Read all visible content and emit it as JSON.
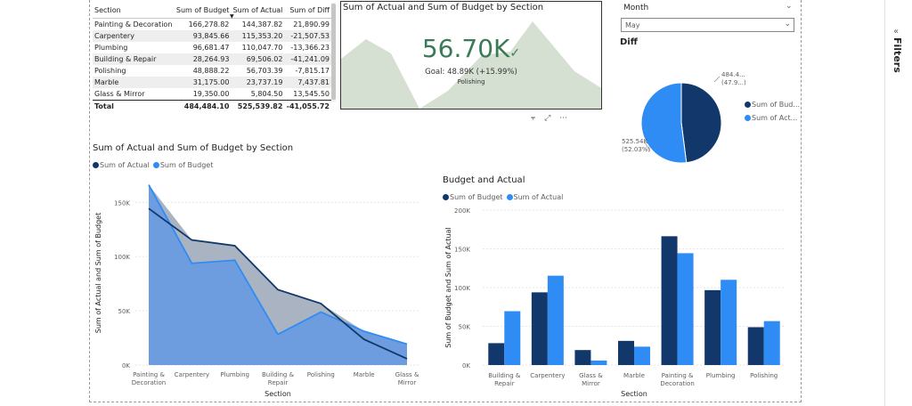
{
  "colors": {
    "dark": "#12386b",
    "light": "#2f8cf4",
    "kpi_green": "#3b7a57",
    "kpi_bg": "#d5e0d3"
  },
  "table": {
    "headers": [
      "Section",
      "Sum of Budget",
      "Sum of Actual",
      "Sum of Diff"
    ],
    "rows": [
      [
        "Painting & Decoration",
        "166,278.82",
        "144,387.82",
        "21,890.99"
      ],
      [
        "Carpentery",
        "93,845.66",
        "115,353.20",
        "-21,507.53"
      ],
      [
        "Plumbing",
        "96,681.47",
        "110,047.70",
        "-13,366.23"
      ],
      [
        "Building & Repair",
        "28,264.93",
        "69,506.02",
        "-41,241.09"
      ],
      [
        "Polishing",
        "48,888.22",
        "56,703.39",
        "-7,815.17"
      ],
      [
        "Marble",
        "31,175.00",
        "23,737.19",
        "7,437.81"
      ],
      [
        "Glass & Mirror",
        "19,350.00",
        "5,804.50",
        "13,545.50"
      ]
    ],
    "total": [
      "Total",
      "484,484.10",
      "525,539.82",
      "-41,055.72"
    ]
  },
  "kpi": {
    "title": "Sum of Actual and Sum of Budget by Section",
    "value": "56.70K",
    "check": "✓",
    "goal": "Goal: 48.89K (+15.99%)",
    "sub": "Polishing"
  },
  "toolbar_icons": [
    "filter-icon",
    "focus-mode-icon",
    "more-options-icon"
  ],
  "slicer": {
    "title": "Month",
    "value": "May"
  },
  "pie": {
    "title": "Diff",
    "label_top": "484.4...",
    "label_top_pct": "(47.9...)",
    "label_bottom": "525.54K",
    "label_bottom_pct": "(52.03%)",
    "legend": [
      "Sum of Bud...",
      "Sum of Act..."
    ],
    "values": [
      484484.1,
      525539.82
    ]
  },
  "filters_pane": {
    "label": "Filters"
  },
  "area_chart": {
    "title": "Sum of Actual and Sum of Budget by Section",
    "legend": [
      "Sum of Actual",
      "Sum of Budget"
    ]
  },
  "bar_chart": {
    "title": "Budget and Actual",
    "legend": [
      "Sum of Budget",
      "Sum of Actual"
    ]
  },
  "chart_data": [
    {
      "type": "area",
      "title": "Sum of Actual and Sum of Budget by Section",
      "xlabel": "Section",
      "ylabel": "Sum of Actual and Sum of Budget",
      "categories": [
        "Painting & Decoration",
        "Carpentery",
        "Plumbing",
        "Building & Repair",
        "Polishing",
        "Marble",
        "Glass & Mirror"
      ],
      "category_lines": [
        [
          "Painting &",
          "Decoration"
        ],
        [
          "Carpentery"
        ],
        [
          "Plumbing"
        ],
        [
          "Building &",
          "Repair"
        ],
        [
          "Polishing"
        ],
        [
          "Marble"
        ],
        [
          "Glass &",
          "Mirror"
        ]
      ],
      "series": [
        {
          "name": "Sum of Actual",
          "values": [
            144387.82,
            115353.2,
            110047.7,
            69506.02,
            56703.39,
            23737.19,
            5804.5
          ]
        },
        {
          "name": "Sum of Budget",
          "values": [
            166278.82,
            93845.66,
            96681.47,
            28264.93,
            48888.22,
            31175.0,
            19350.0
          ]
        }
      ],
      "yticks": [
        "0K",
        "50K",
        "100K",
        "150K"
      ],
      "ylim": [
        0,
        170000
      ],
      "grid": true,
      "legend_position": "top-left"
    },
    {
      "type": "bar",
      "title": "Budget and Actual",
      "xlabel": "Section",
      "ylabel": "Sum of Budget and Sum of Actual",
      "categories": [
        "Building & Repair",
        "Carpentery",
        "Glass & Mirror",
        "Marble",
        "Painting & Decoration",
        "Plumbing",
        "Polishing"
      ],
      "category_lines": [
        [
          "Building &",
          "Repair"
        ],
        [
          "Carpentery"
        ],
        [
          "Glass &",
          "Mirror"
        ],
        [
          "Marble"
        ],
        [
          "Painting &",
          "Decoration"
        ],
        [
          "Plumbing"
        ],
        [
          "Polishing"
        ]
      ],
      "series": [
        {
          "name": "Sum of Budget",
          "values": [
            28264.93,
            93845.66,
            19350.0,
            31175.0,
            166278.82,
            96681.47,
            48888.22
          ]
        },
        {
          "name": "Sum of Actual",
          "values": [
            69506.02,
            115353.2,
            5804.5,
            23737.19,
            144387.82,
            110047.7,
            56703.39
          ]
        }
      ],
      "yticks": [
        "0K",
        "50K",
        "100K",
        "150K",
        "200K"
      ],
      "ylim": [
        0,
        200000
      ],
      "grid": true,
      "legend_position": "top-left"
    }
  ]
}
